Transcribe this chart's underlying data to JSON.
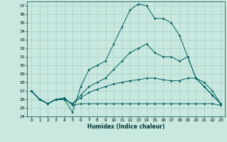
{
  "title": "",
  "xlabel": "Humidex (Indice chaleur)",
  "ylabel": "",
  "xlim": [
    -0.5,
    23.5
  ],
  "ylim": [
    24,
    37.5
  ],
  "yticks": [
    24,
    25,
    26,
    27,
    28,
    29,
    30,
    31,
    32,
    33,
    34,
    35,
    36,
    37
  ],
  "xticks": [
    0,
    1,
    2,
    3,
    4,
    5,
    6,
    7,
    8,
    9,
    10,
    11,
    12,
    13,
    14,
    15,
    16,
    17,
    18,
    19,
    20,
    21,
    22,
    23
  ],
  "bg_color": "#c8e8e0",
  "grid_color": "#a0c8c0",
  "line_color": "#006060",
  "lines": [
    {
      "x": [
        0,
        1,
        2,
        3,
        4,
        5,
        6,
        7,
        8,
        9,
        10,
        11,
        12,
        13,
        14,
        15,
        16,
        17,
        18,
        19,
        20,
        21,
        22,
        23
      ],
      "y": [
        27.0,
        26.0,
        25.5,
        26.0,
        26.0,
        24.5,
        27.5,
        29.5,
        30.0,
        30.5,
        32.5,
        34.5,
        36.5,
        37.2,
        37.0,
        35.5,
        35.5,
        35.0,
        33.5,
        31.0,
        28.5,
        27.5,
        26.5,
        25.5
      ]
    },
    {
      "x": [
        0,
        1,
        2,
        3,
        4,
        5,
        6,
        7,
        8,
        9,
        10,
        11,
        12,
        13,
        14,
        15,
        16,
        17,
        18,
        19,
        20,
        21,
        22,
        23
      ],
      "y": [
        27.0,
        26.0,
        25.5,
        26.0,
        26.0,
        25.5,
        26.5,
        27.5,
        28.0,
        28.5,
        29.5,
        30.5,
        31.5,
        32.0,
        32.5,
        31.5,
        31.0,
        31.0,
        30.5,
        31.0,
        28.5,
        27.5,
        26.5,
        25.5
      ]
    },
    {
      "x": [
        0,
        1,
        2,
        3,
        4,
        5,
        6,
        7,
        8,
        9,
        10,
        11,
        12,
        13,
        14,
        15,
        16,
        17,
        18,
        19,
        20,
        21,
        22,
        23
      ],
      "y": [
        27.0,
        26.0,
        25.5,
        26.0,
        26.0,
        25.5,
        26.2,
        26.8,
        27.2,
        27.5,
        27.8,
        28.0,
        28.2,
        28.3,
        28.5,
        28.5,
        28.3,
        28.2,
        28.2,
        28.5,
        28.5,
        28.0,
        27.0,
        25.5
      ]
    },
    {
      "x": [
        0,
        1,
        2,
        3,
        4,
        5,
        6,
        7,
        8,
        9,
        10,
        11,
        12,
        13,
        14,
        15,
        16,
        17,
        18,
        19,
        20,
        21,
        22,
        23
      ],
      "y": [
        27.0,
        26.0,
        25.5,
        26.0,
        26.2,
        25.3,
        25.5,
        25.5,
        25.5,
        25.5,
        25.5,
        25.5,
        25.5,
        25.5,
        25.5,
        25.5,
        25.5,
        25.5,
        25.5,
        25.5,
        25.5,
        25.5,
        25.5,
        25.3
      ]
    }
  ],
  "figsize": [
    3.2,
    2.0
  ],
  "dpi": 100
}
